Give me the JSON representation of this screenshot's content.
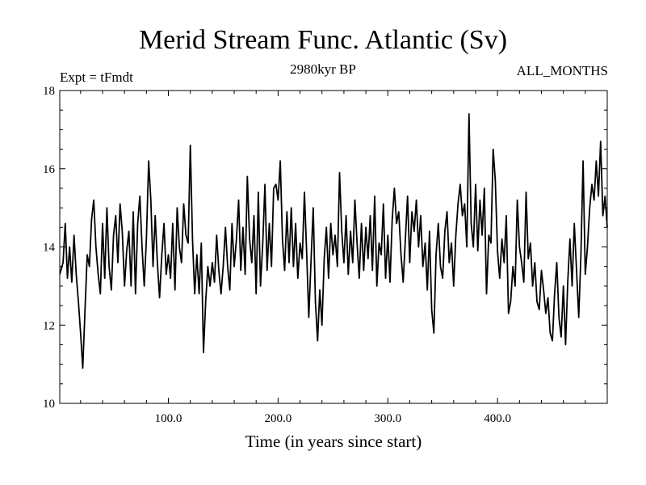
{
  "chart_data": {
    "type": "line",
    "title": "Merid Stream Func. Atlantic (Sv)",
    "subtitle": "2980kyr BP",
    "left_label": "Expt = tFmdt",
    "right_label": "ALL_MONTHS",
    "xlabel": "Time (in years since start)",
    "ylabel": "",
    "xlim": [
      1,
      500
    ],
    "ylim": [
      10,
      18
    ],
    "xticks": [
      100,
      200,
      300,
      400
    ],
    "xtick_labels": [
      "100.0",
      "200.0",
      "300.0",
      "400.0"
    ],
    "yticks": [
      10,
      12,
      14,
      16,
      18
    ],
    "ytick_labels": [
      "10",
      "12",
      "14",
      "16",
      "18"
    ],
    "grid": false,
    "series": [
      {
        "name": "Merid Stream Func. Atlantic",
        "color": "#000000",
        "points": [
          [
            1,
            13.3
          ],
          [
            4,
            13.6
          ],
          [
            6,
            14.6
          ],
          [
            8,
            13.2
          ],
          [
            10,
            14.0
          ],
          [
            12,
            13.1
          ],
          [
            14,
            14.3
          ],
          [
            16,
            13.3
          ],
          [
            18,
            12.6
          ],
          [
            20,
            11.8
          ],
          [
            22,
            10.9
          ],
          [
            24,
            12.4
          ],
          [
            26,
            13.8
          ],
          [
            28,
            13.5
          ],
          [
            30,
            14.7
          ],
          [
            32,
            15.2
          ],
          [
            34,
            14.0
          ],
          [
            36,
            13.3
          ],
          [
            38,
            12.8
          ],
          [
            40,
            14.6
          ],
          [
            42,
            13.2
          ],
          [
            44,
            15.0
          ],
          [
            46,
            13.5
          ],
          [
            48,
            12.9
          ],
          [
            50,
            14.3
          ],
          [
            52,
            14.8
          ],
          [
            54,
            13.6
          ],
          [
            56,
            15.1
          ],
          [
            58,
            14.4
          ],
          [
            60,
            13.0
          ],
          [
            62,
            13.9
          ],
          [
            64,
            14.4
          ],
          [
            66,
            13.0
          ],
          [
            68,
            14.9
          ],
          [
            70,
            12.8
          ],
          [
            72,
            14.6
          ],
          [
            74,
            15.3
          ],
          [
            76,
            14.0
          ],
          [
            78,
            13.0
          ],
          [
            80,
            14.2
          ],
          [
            82,
            16.2
          ],
          [
            84,
            15.2
          ],
          [
            86,
            13.5
          ],
          [
            88,
            14.8
          ],
          [
            90,
            13.6
          ],
          [
            92,
            12.7
          ],
          [
            94,
            13.8
          ],
          [
            96,
            14.6
          ],
          [
            98,
            13.3
          ],
          [
            100,
            13.8
          ],
          [
            102,
            13.2
          ],
          [
            104,
            14.6
          ],
          [
            106,
            12.9
          ],
          [
            108,
            15.0
          ],
          [
            110,
            14.0
          ],
          [
            112,
            13.6
          ],
          [
            114,
            15.1
          ],
          [
            116,
            14.3
          ],
          [
            118,
            14.1
          ],
          [
            120,
            16.6
          ],
          [
            122,
            14.2
          ],
          [
            124,
            12.8
          ],
          [
            126,
            13.8
          ],
          [
            128,
            12.8
          ],
          [
            130,
            14.1
          ],
          [
            132,
            11.3
          ],
          [
            134,
            12.6
          ],
          [
            136,
            13.5
          ],
          [
            138,
            13.0
          ],
          [
            140,
            13.6
          ],
          [
            142,
            13.1
          ],
          [
            144,
            14.3
          ],
          [
            146,
            13.4
          ],
          [
            148,
            12.8
          ],
          [
            150,
            13.5
          ],
          [
            152,
            14.5
          ],
          [
            154,
            13.5
          ],
          [
            156,
            12.9
          ],
          [
            158,
            14.6
          ],
          [
            160,
            13.5
          ],
          [
            162,
            14.2
          ],
          [
            164,
            15.2
          ],
          [
            166,
            13.4
          ],
          [
            168,
            14.5
          ],
          [
            170,
            13.3
          ],
          [
            172,
            15.8
          ],
          [
            174,
            14.2
          ],
          [
            176,
            13.6
          ],
          [
            178,
            14.8
          ],
          [
            180,
            12.8
          ],
          [
            182,
            15.4
          ],
          [
            184,
            13.0
          ],
          [
            186,
            14.1
          ],
          [
            188,
            15.6
          ],
          [
            190,
            13.4
          ],
          [
            192,
            14.6
          ],
          [
            194,
            13.5
          ],
          [
            196,
            15.5
          ],
          [
            198,
            15.6
          ],
          [
            200,
            15.2
          ],
          [
            202,
            16.2
          ],
          [
            204,
            14.2
          ],
          [
            206,
            13.4
          ],
          [
            208,
            14.9
          ],
          [
            210,
            13.6
          ],
          [
            212,
            15.0
          ],
          [
            214,
            13.5
          ],
          [
            216,
            14.6
          ],
          [
            218,
            13.2
          ],
          [
            220,
            14.1
          ],
          [
            222,
            13.7
          ],
          [
            224,
            15.4
          ],
          [
            226,
            13.9
          ],
          [
            228,
            12.2
          ],
          [
            230,
            13.6
          ],
          [
            232,
            15.0
          ],
          [
            234,
            12.6
          ],
          [
            236,
            11.6
          ],
          [
            238,
            12.9
          ],
          [
            240,
            12.0
          ],
          [
            242,
            13.7
          ],
          [
            244,
            14.5
          ],
          [
            246,
            13.2
          ],
          [
            248,
            14.6
          ],
          [
            250,
            13.8
          ],
          [
            252,
            14.3
          ],
          [
            254,
            13.5
          ],
          [
            256,
            15.9
          ],
          [
            258,
            14.4
          ],
          [
            260,
            13.6
          ],
          [
            262,
            14.8
          ],
          [
            264,
            13.3
          ],
          [
            266,
            14.4
          ],
          [
            268,
            13.6
          ],
          [
            270,
            15.2
          ],
          [
            272,
            14.1
          ],
          [
            274,
            13.2
          ],
          [
            276,
            14.6
          ],
          [
            278,
            13.4
          ],
          [
            280,
            14.5
          ],
          [
            282,
            13.7
          ],
          [
            284,
            14.8
          ],
          [
            286,
            13.4
          ],
          [
            288,
            15.3
          ],
          [
            290,
            13.0
          ],
          [
            292,
            14.1
          ],
          [
            294,
            13.8
          ],
          [
            296,
            15.1
          ],
          [
            298,
            13.2
          ],
          [
            300,
            14.3
          ],
          [
            302,
            13.1
          ],
          [
            304,
            14.7
          ],
          [
            306,
            15.5
          ],
          [
            308,
            14.6
          ],
          [
            310,
            14.9
          ],
          [
            312,
            13.8
          ],
          [
            314,
            13.1
          ],
          [
            316,
            14.2
          ],
          [
            318,
            15.3
          ],
          [
            320,
            13.6
          ],
          [
            322,
            14.9
          ],
          [
            324,
            14.4
          ],
          [
            326,
            15.2
          ],
          [
            328,
            14.0
          ],
          [
            330,
            14.8
          ],
          [
            332,
            13.5
          ],
          [
            334,
            14.1
          ],
          [
            336,
            12.9
          ],
          [
            338,
            14.4
          ],
          [
            340,
            12.4
          ],
          [
            342,
            11.8
          ],
          [
            344,
            13.8
          ],
          [
            346,
            14.6
          ],
          [
            348,
            13.5
          ],
          [
            350,
            13.2
          ],
          [
            352,
            14.4
          ],
          [
            354,
            14.9
          ],
          [
            356,
            13.6
          ],
          [
            358,
            14.1
          ],
          [
            360,
            13.0
          ],
          [
            362,
            14.3
          ],
          [
            364,
            15.1
          ],
          [
            366,
            15.6
          ],
          [
            368,
            14.8
          ],
          [
            370,
            15.1
          ],
          [
            372,
            14.0
          ],
          [
            374,
            17.4
          ],
          [
            376,
            14.6
          ],
          [
            378,
            14.0
          ],
          [
            380,
            15.6
          ],
          [
            382,
            13.9
          ],
          [
            384,
            15.2
          ],
          [
            386,
            14.3
          ],
          [
            388,
            15.5
          ],
          [
            390,
            12.8
          ],
          [
            392,
            14.3
          ],
          [
            394,
            14.1
          ],
          [
            396,
            16.5
          ],
          [
            398,
            15.7
          ],
          [
            400,
            13.9
          ],
          [
            402,
            13.2
          ],
          [
            404,
            14.2
          ],
          [
            406,
            13.6
          ],
          [
            408,
            14.8
          ],
          [
            410,
            12.3
          ],
          [
            412,
            12.6
          ],
          [
            414,
            13.5
          ],
          [
            416,
            13.0
          ],
          [
            418,
            15.2
          ],
          [
            420,
            14.0
          ],
          [
            422,
            13.6
          ],
          [
            424,
            13.1
          ],
          [
            426,
            15.4
          ],
          [
            428,
            13.7
          ],
          [
            430,
            14.1
          ],
          [
            432,
            13.0
          ],
          [
            434,
            13.6
          ],
          [
            436,
            12.6
          ],
          [
            438,
            12.4
          ],
          [
            440,
            13.4
          ],
          [
            442,
            12.9
          ],
          [
            444,
            12.3
          ],
          [
            446,
            12.7
          ],
          [
            448,
            11.8
          ],
          [
            450,
            11.6
          ],
          [
            452,
            12.8
          ],
          [
            454,
            13.6
          ],
          [
            456,
            12.2
          ],
          [
            458,
            11.7
          ],
          [
            460,
            13.0
          ],
          [
            462,
            11.5
          ],
          [
            464,
            13.1
          ],
          [
            466,
            14.2
          ],
          [
            468,
            13.0
          ],
          [
            470,
            14.6
          ],
          [
            472,
            13.4
          ],
          [
            474,
            12.2
          ],
          [
            476,
            13.8
          ],
          [
            478,
            16.2
          ],
          [
            480,
            13.3
          ],
          [
            482,
            14.0
          ],
          [
            484,
            15.0
          ],
          [
            486,
            15.6
          ],
          [
            488,
            15.2
          ],
          [
            490,
            16.2
          ],
          [
            492,
            15.3
          ],
          [
            494,
            16.7
          ],
          [
            496,
            14.8
          ],
          [
            498,
            15.3
          ],
          [
            500,
            14.5
          ]
        ]
      }
    ]
  }
}
